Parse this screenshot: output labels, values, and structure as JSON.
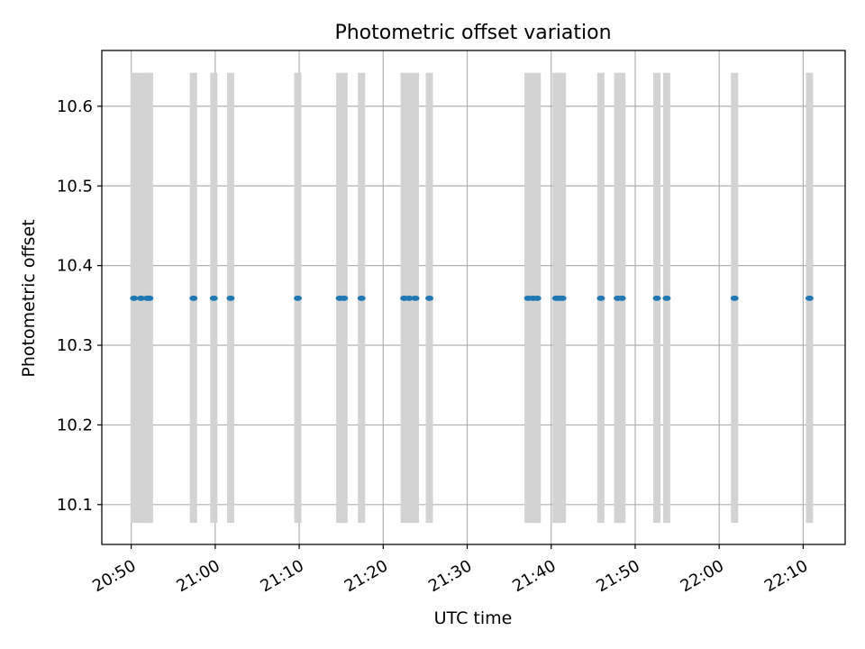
{
  "chart_data": {
    "type": "scatter",
    "title": "Photometric offset variation",
    "xlabel": "UTC time",
    "ylabel": "Photometric offset",
    "x_range": [
      "20:46:30",
      "22:15:00"
    ],
    "ylim": [
      10.05,
      10.67
    ],
    "x_ticks": [
      "20:50",
      "21:00",
      "21:10",
      "21:20",
      "21:30",
      "21:40",
      "21:50",
      "22:00",
      "22:10"
    ],
    "y_ticks": [
      "10.1",
      "10.2",
      "10.3",
      "10.4",
      "10.5",
      "10.6"
    ],
    "grid": true,
    "legend": "none",
    "series": [
      {
        "marker_color": "#1f77b4",
        "errorbar_color": "#d3d3d3",
        "points": [
          {
            "x": "20:50:20",
            "y": 10.359,
            "ymin": 10.077,
            "ymax": 10.642
          },
          {
            "x": "20:51:10",
            "y": 10.359,
            "ymin": 10.077,
            "ymax": 10.642
          },
          {
            "x": "20:51:55",
            "y": 10.359,
            "ymin": 10.077,
            "ymax": 10.642
          },
          {
            "x": "20:52:10",
            "y": 10.359,
            "ymin": 10.077,
            "ymax": 10.642
          },
          {
            "x": "20:57:25",
            "y": 10.359,
            "ymin": 10.077,
            "ymax": 10.642
          },
          {
            "x": "20:59:50",
            "y": 10.359,
            "ymin": 10.077,
            "ymax": 10.642
          },
          {
            "x": "21:01:50",
            "y": 10.359,
            "ymin": 10.077,
            "ymax": 10.642
          },
          {
            "x": "21:09:50",
            "y": 10.359,
            "ymin": 10.077,
            "ymax": 10.642
          },
          {
            "x": "21:14:50",
            "y": 10.359,
            "ymin": 10.077,
            "ymax": 10.642
          },
          {
            "x": "21:15:20",
            "y": 10.359,
            "ymin": 10.077,
            "ymax": 10.642
          },
          {
            "x": "21:17:25",
            "y": 10.359,
            "ymin": 10.077,
            "ymax": 10.642
          },
          {
            "x": "21:22:30",
            "y": 10.359,
            "ymin": 10.077,
            "ymax": 10.642
          },
          {
            "x": "21:23:05",
            "y": 10.359,
            "ymin": 10.077,
            "ymax": 10.642
          },
          {
            "x": "21:23:50",
            "y": 10.359,
            "ymin": 10.077,
            "ymax": 10.642
          },
          {
            "x": "21:25:30",
            "y": 10.359,
            "ymin": 10.077,
            "ymax": 10.642
          },
          {
            "x": "21:37:15",
            "y": 10.359,
            "ymin": 10.077,
            "ymax": 10.642
          },
          {
            "x": "21:37:50",
            "y": 10.359,
            "ymin": 10.077,
            "ymax": 10.642
          },
          {
            "x": "21:38:20",
            "y": 10.359,
            "ymin": 10.077,
            "ymax": 10.642
          },
          {
            "x": "21:40:35",
            "y": 10.359,
            "ymin": 10.077,
            "ymax": 10.642
          },
          {
            "x": "21:40:55",
            "y": 10.359,
            "ymin": 10.077,
            "ymax": 10.642
          },
          {
            "x": "21:41:20",
            "y": 10.359,
            "ymin": 10.077,
            "ymax": 10.642
          },
          {
            "x": "21:45:55",
            "y": 10.359,
            "ymin": 10.077,
            "ymax": 10.642
          },
          {
            "x": "21:47:55",
            "y": 10.359,
            "ymin": 10.077,
            "ymax": 10.642
          },
          {
            "x": "21:48:25",
            "y": 10.359,
            "ymin": 10.077,
            "ymax": 10.642
          },
          {
            "x": "21:52:35",
            "y": 10.359,
            "ymin": 10.077,
            "ymax": 10.642
          },
          {
            "x": "21:53:45",
            "y": 10.359,
            "ymin": 10.077,
            "ymax": 10.642
          },
          {
            "x": "22:01:50",
            "y": 10.359,
            "ymin": 10.077,
            "ymax": 10.642
          },
          {
            "x": "22:10:45",
            "y": 10.359,
            "ymin": 10.077,
            "ymax": 10.642
          }
        ]
      }
    ]
  }
}
